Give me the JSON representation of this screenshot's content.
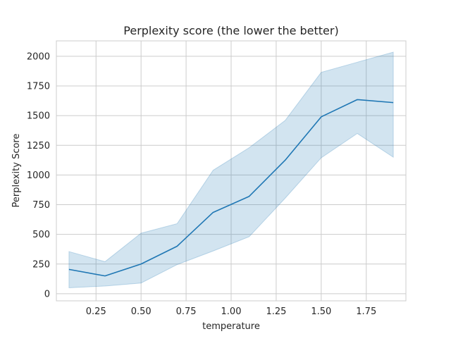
{
  "chart_data": {
    "type": "line",
    "title": "Perplexity score (the lower the better)",
    "xlabel": "temperature",
    "ylabel": "Perplexity Score",
    "xlim": [
      0.03,
      1.97
    ],
    "ylim": [
      -60,
      2130
    ],
    "x_ticks": [
      0.25,
      0.5,
      0.75,
      1.0,
      1.25,
      1.5,
      1.75
    ],
    "x_tick_labels": [
      "0.25",
      "0.50",
      "0.75",
      "1.00",
      "1.25",
      "1.50",
      "1.75"
    ],
    "y_ticks": [
      0,
      250,
      500,
      750,
      1000,
      1250,
      1500,
      1750,
      2000
    ],
    "y_tick_labels": [
      "0",
      "250",
      "500",
      "750",
      "1000",
      "1250",
      "1500",
      "1750",
      "2000"
    ],
    "grid": true,
    "series": [
      {
        "x": [
          0.1,
          0.3,
          0.5,
          0.7,
          0.9,
          1.1,
          1.3,
          1.5,
          1.7,
          1.9
        ],
        "values": [
          205,
          150,
          250,
          400,
          685,
          820,
          1125,
          1490,
          1635,
          1610
        ],
        "lower": [
          50,
          65,
          90,
          245,
          360,
          480,
          805,
          1145,
          1350,
          1150
        ],
        "upper": [
          355,
          270,
          510,
          590,
          1040,
          1230,
          1460,
          1865,
          1950,
          2035
        ],
        "color": "#1f77b4"
      }
    ]
  }
}
